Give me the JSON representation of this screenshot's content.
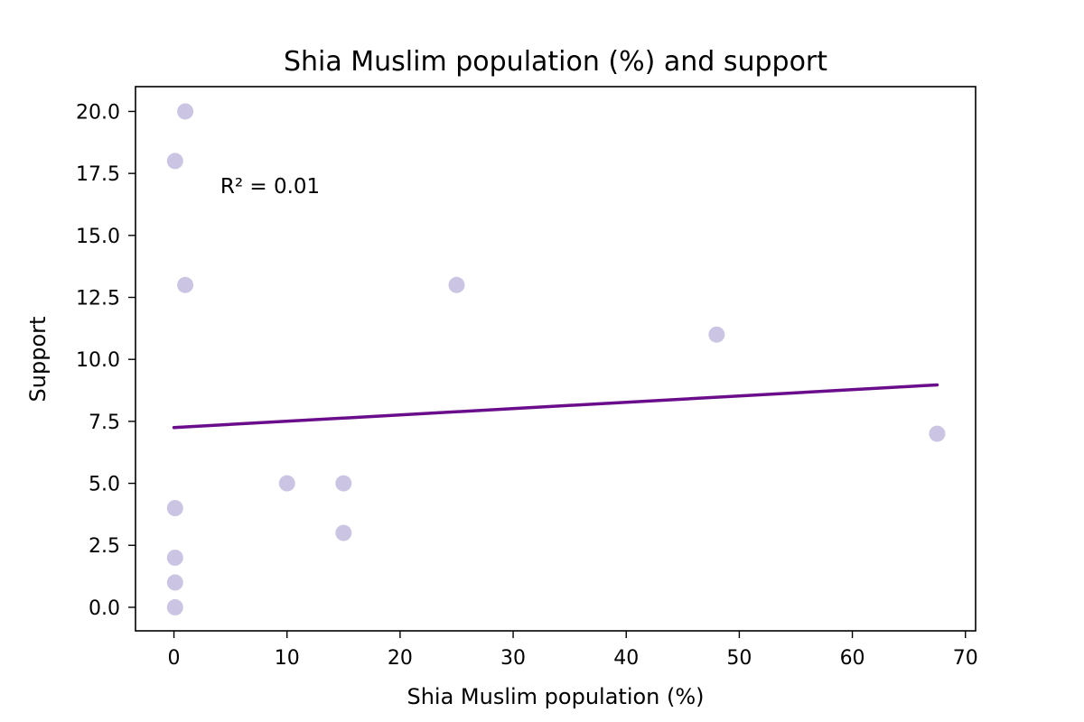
{
  "chart_data": {
    "type": "scatter",
    "title": "Shia Muslim population (%) and support",
    "xlabel": "Shia Muslim population (%)",
    "ylabel": "Support",
    "xlim": [
      -3.4,
      70.9
    ],
    "ylim": [
      -0.95,
      21
    ],
    "xticks": [
      0,
      10,
      20,
      30,
      40,
      50,
      60,
      70
    ],
    "xtick_labels": [
      "0",
      "10",
      "20",
      "30",
      "40",
      "50",
      "60",
      "70"
    ],
    "yticks": [
      0,
      2.5,
      5,
      7.5,
      10,
      12.5,
      15,
      17.5,
      20
    ],
    "ytick_labels": [
      "0.0",
      "2.5",
      "5.0",
      "7.5",
      "10.0",
      "12.5",
      "15.0",
      "17.5",
      "20.0"
    ],
    "grid": false,
    "points": [
      {
        "x": 1,
        "y": 20
      },
      {
        "x": 0.1,
        "y": 18
      },
      {
        "x": 1,
        "y": 13
      },
      {
        "x": 25,
        "y": 13
      },
      {
        "x": 48,
        "y": 11
      },
      {
        "x": 67.5,
        "y": 7
      },
      {
        "x": 10,
        "y": 5
      },
      {
        "x": 15,
        "y": 5
      },
      {
        "x": 15,
        "y": 3
      },
      {
        "x": 0.1,
        "y": 4
      },
      {
        "x": 0.1,
        "y": 2
      },
      {
        "x": 0.1,
        "y": 1
      },
      {
        "x": 0.1,
        "y": 0
      }
    ],
    "trendline": {
      "x": [
        0,
        67.5
      ],
      "y": [
        7.25,
        8.97
      ]
    },
    "annotation": {
      "text": "R² = 0.01",
      "x": 4.1,
      "y": 16.7
    },
    "point_color": "#cbc5e3",
    "line_color": "#6a0d8a"
  }
}
